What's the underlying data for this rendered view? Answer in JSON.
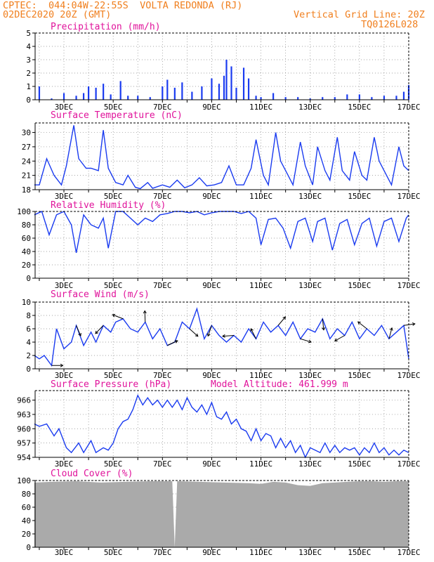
{
  "header": {
    "line1": "CPTEC:  044:04W-22:55S  VOLTA REDONDA (RJ)",
    "line2": "02DEC2020 20Z (GMT)",
    "grid_note": "Vertical Grid Line: 20Z",
    "code": "TQ0126L028"
  },
  "colors": {
    "header": "#f07f1e",
    "title": "#e0139b",
    "series": "#1a3bf0",
    "cloud": "#aaaaaa"
  },
  "x_axis_dates": [
    "3DEC",
    "5DEC",
    "7DEC",
    "9DEC",
    "11DEC",
    "13DEC",
    "15DEC",
    "17DEC"
  ],
  "chart_data": [
    {
      "type": "bar",
      "title": "Precipitation (mm/h)",
      "ylim": [
        0,
        5
      ],
      "yticks": [
        0,
        1,
        2,
        3,
        4,
        5
      ],
      "x": [
        2.0,
        2.5,
        3.0,
        3.5,
        3.8,
        4.0,
        4.3,
        4.6,
        4.9,
        5.3,
        5.6,
        6.0,
        6.5,
        7.0,
        7.2,
        7.5,
        7.8,
        8.2,
        8.6,
        9.0,
        9.3,
        9.5,
        9.6,
        9.8,
        10.0,
        10.3,
        10.5,
        10.8,
        11.0,
        11.5,
        12.0,
        12.5,
        13.0,
        13.5,
        14.0,
        14.5,
        15.0,
        15.5,
        16.0,
        16.5,
        16.8,
        17.0
      ],
      "values": [
        1.0,
        0.1,
        0.5,
        0.3,
        0.5,
        1.0,
        0.9,
        1.2,
        0.4,
        1.4,
        0.3,
        0.3,
        0.2,
        1.0,
        1.5,
        0.9,
        1.3,
        0.6,
        1.0,
        1.6,
        1.2,
        1.8,
        3.0,
        2.5,
        0.9,
        2.4,
        1.6,
        0.3,
        0.2,
        0.5,
        0.2,
        0.2,
        0.1,
        0.2,
        0.2,
        0.4,
        0.4,
        0.2,
        0.3,
        0.3,
        0.6,
        1.1
      ]
    },
    {
      "type": "line",
      "title": "Surface Temperature (nC)",
      "ylim": [
        18,
        32
      ],
      "yticks": [
        18,
        21,
        24,
        27,
        30
      ],
      "x": [
        1.8,
        2.0,
        2.3,
        2.6,
        2.9,
        3.1,
        3.4,
        3.6,
        3.9,
        4.1,
        4.4,
        4.6,
        4.8,
        5.1,
        5.4,
        5.6,
        5.9,
        6.1,
        6.4,
        6.6,
        7.0,
        7.3,
        7.6,
        7.9,
        8.2,
        8.5,
        8.8,
        9.1,
        9.4,
        9.7,
        10.0,
        10.3,
        10.6,
        10.8,
        11.1,
        11.3,
        11.6,
        11.8,
        12.1,
        12.3,
        12.6,
        12.8,
        13.1,
        13.3,
        13.6,
        13.8,
        14.1,
        14.3,
        14.6,
        14.8,
        15.1,
        15.3,
        15.6,
        15.8,
        16.1,
        16.3,
        16.6,
        16.8,
        17.0
      ],
      "values": [
        19,
        19,
        24.5,
        21,
        19,
        23,
        31.5,
        24.5,
        22.5,
        22.5,
        22,
        30.5,
        22.5,
        19.5,
        19,
        21,
        18.5,
        18.2,
        19.5,
        18.3,
        19,
        18.5,
        20,
        18.4,
        19,
        20.5,
        18.8,
        19,
        19.5,
        23,
        19,
        19,
        22.5,
        28.5,
        21,
        19,
        30,
        24,
        21,
        19,
        28,
        23,
        19,
        27,
        22,
        20,
        29,
        22,
        20,
        26,
        21,
        20,
        29,
        24,
        21,
        19,
        27,
        23,
        22
      ]
    },
    {
      "type": "line",
      "title": "Relative Humidity (%)",
      "ylim": [
        0,
        100
      ],
      "yticks": [
        0,
        20,
        40,
        60,
        80,
        100
      ],
      "x": [
        1.8,
        2.1,
        2.4,
        2.7,
        3.0,
        3.3,
        3.5,
        3.8,
        4.1,
        4.4,
        4.6,
        4.8,
        5.1,
        5.4,
        5.7,
        6.0,
        6.3,
        6.6,
        6.9,
        7.2,
        7.5,
        7.8,
        8.1,
        8.4,
        8.7,
        9.0,
        9.3,
        9.6,
        9.9,
        10.2,
        10.5,
        10.8,
        11.0,
        11.3,
        11.6,
        11.9,
        12.2,
        12.5,
        12.8,
        13.1,
        13.3,
        13.6,
        13.9,
        14.2,
        14.5,
        14.8,
        15.1,
        15.4,
        15.7,
        16.0,
        16.3,
        16.6,
        16.9,
        17.0
      ],
      "values": [
        95,
        100,
        65,
        95,
        100,
        80,
        38,
        95,
        80,
        75,
        90,
        45,
        100,
        100,
        90,
        80,
        90,
        85,
        95,
        97,
        100,
        100,
        98,
        100,
        95,
        98,
        100,
        100,
        100,
        97,
        100,
        90,
        50,
        88,
        90,
        75,
        45,
        85,
        90,
        55,
        85,
        90,
        42,
        82,
        88,
        50,
        82,
        90,
        48,
        85,
        90,
        55,
        90,
        95
      ]
    },
    {
      "type": "line",
      "title": "Surface Wind (m/s)",
      "ylim": [
        0,
        10
      ],
      "yticks": [
        0,
        2,
        4,
        6,
        8,
        10
      ],
      "x": [
        1.8,
        2.0,
        2.2,
        2.5,
        2.7,
        3.0,
        3.3,
        3.5,
        3.8,
        4.1,
        4.3,
        4.6,
        4.9,
        5.1,
        5.4,
        5.7,
        6.0,
        6.3,
        6.6,
        6.9,
        7.2,
        7.5,
        7.8,
        8.1,
        8.4,
        8.7,
        9.0,
        9.3,
        9.6,
        9.9,
        10.2,
        10.5,
        10.8,
        11.1,
        11.4,
        11.7,
        12.0,
        12.3,
        12.6,
        12.9,
        13.2,
        13.5,
        13.8,
        14.1,
        14.4,
        14.7,
        15.0,
        15.3,
        15.6,
        15.9,
        16.2,
        16.5,
        16.8,
        17.0
      ],
      "values": [
        2.0,
        1.5,
        2.0,
        0.5,
        6.0,
        3.0,
        4.0,
        6.5,
        3.5,
        5.5,
        4.0,
        6.5,
        5.5,
        7.0,
        7.5,
        6.0,
        5.5,
        7.0,
        4.5,
        6.0,
        3.5,
        4.0,
        7.0,
        6.0,
        9.0,
        4.5,
        6.5,
        5.0,
        4.0,
        5.0,
        4.0,
        6.0,
        4.5,
        7.0,
        5.5,
        6.5,
        5.0,
        7.0,
        4.5,
        6.0,
        5.5,
        7.5,
        4.5,
        6.0,
        5.0,
        7.0,
        4.5,
        6.0,
        5.0,
        6.5,
        4.5,
        5.5,
        6.5,
        1.5
      ]
    },
    {
      "type": "line",
      "title": "Surface Pressure (hPa)",
      "annotation": "Model Altitude: 461.999 m",
      "ylim": [
        954,
        968
      ],
      "yticks": [
        954,
        957,
        960,
        963,
        966
      ],
      "x": [
        1.8,
        2.0,
        2.3,
        2.6,
        2.8,
        3.1,
        3.3,
        3.6,
        3.8,
        4.1,
        4.3,
        4.6,
        4.8,
        5.0,
        5.2,
        5.4,
        5.6,
        5.8,
        6.0,
        6.2,
        6.4,
        6.6,
        6.8,
        7.0,
        7.2,
        7.4,
        7.6,
        7.8,
        8.0,
        8.2,
        8.4,
        8.6,
        8.8,
        9.0,
        9.2,
        9.4,
        9.6,
        9.8,
        10.0,
        10.2,
        10.4,
        10.6,
        10.8,
        11.0,
        11.2,
        11.4,
        11.6,
        11.8,
        12.0,
        12.2,
        12.4,
        12.6,
        12.8,
        13.0,
        13.2,
        13.4,
        13.6,
        13.8,
        14.0,
        14.2,
        14.4,
        14.6,
        14.8,
        15.0,
        15.2,
        15.4,
        15.6,
        15.8,
        16.0,
        16.2,
        16.4,
        16.6,
        16.8,
        17.0
      ],
      "values": [
        961,
        960.5,
        961,
        958.5,
        960,
        956,
        955,
        957,
        955,
        957.5,
        955,
        956,
        955.5,
        957,
        960,
        961.5,
        962,
        964,
        967,
        965,
        966.5,
        965,
        966,
        964.5,
        966,
        964.5,
        966,
        964,
        966.5,
        964.5,
        963.5,
        965,
        963,
        965.5,
        962.5,
        962,
        963.5,
        961,
        962,
        960,
        959.5,
        957.5,
        960,
        957.5,
        959,
        958.5,
        956,
        958,
        956,
        957.5,
        955,
        956.5,
        954,
        956,
        955.5,
        955,
        957,
        955,
        956.5,
        955,
        956,
        955.5,
        956,
        954.5,
        956,
        955,
        957,
        955,
        956,
        954.5,
        955.5,
        954.5,
        955.5,
        955
      ]
    },
    {
      "type": "area",
      "title": "Cloud Cover (%)",
      "ylim": [
        0,
        100
      ],
      "yticks": [
        0,
        20,
        40,
        60,
        80,
        100
      ],
      "x": [
        1.8,
        2.5,
        3.5,
        4.5,
        5.5,
        6.5,
        7.4,
        7.5,
        7.6,
        8.5,
        9.5,
        10.5,
        11.0,
        11.5,
        12.0,
        12.5,
        13.0,
        13.5,
        14.0,
        14.5,
        15.0,
        15.5,
        16.0,
        16.5,
        17.0
      ],
      "values": [
        97,
        98,
        99,
        97,
        98,
        99,
        99,
        0,
        99,
        98,
        97,
        96,
        95,
        98,
        97,
        93,
        92,
        96,
        97,
        98,
        99,
        99,
        98,
        99,
        99
      ]
    }
  ]
}
